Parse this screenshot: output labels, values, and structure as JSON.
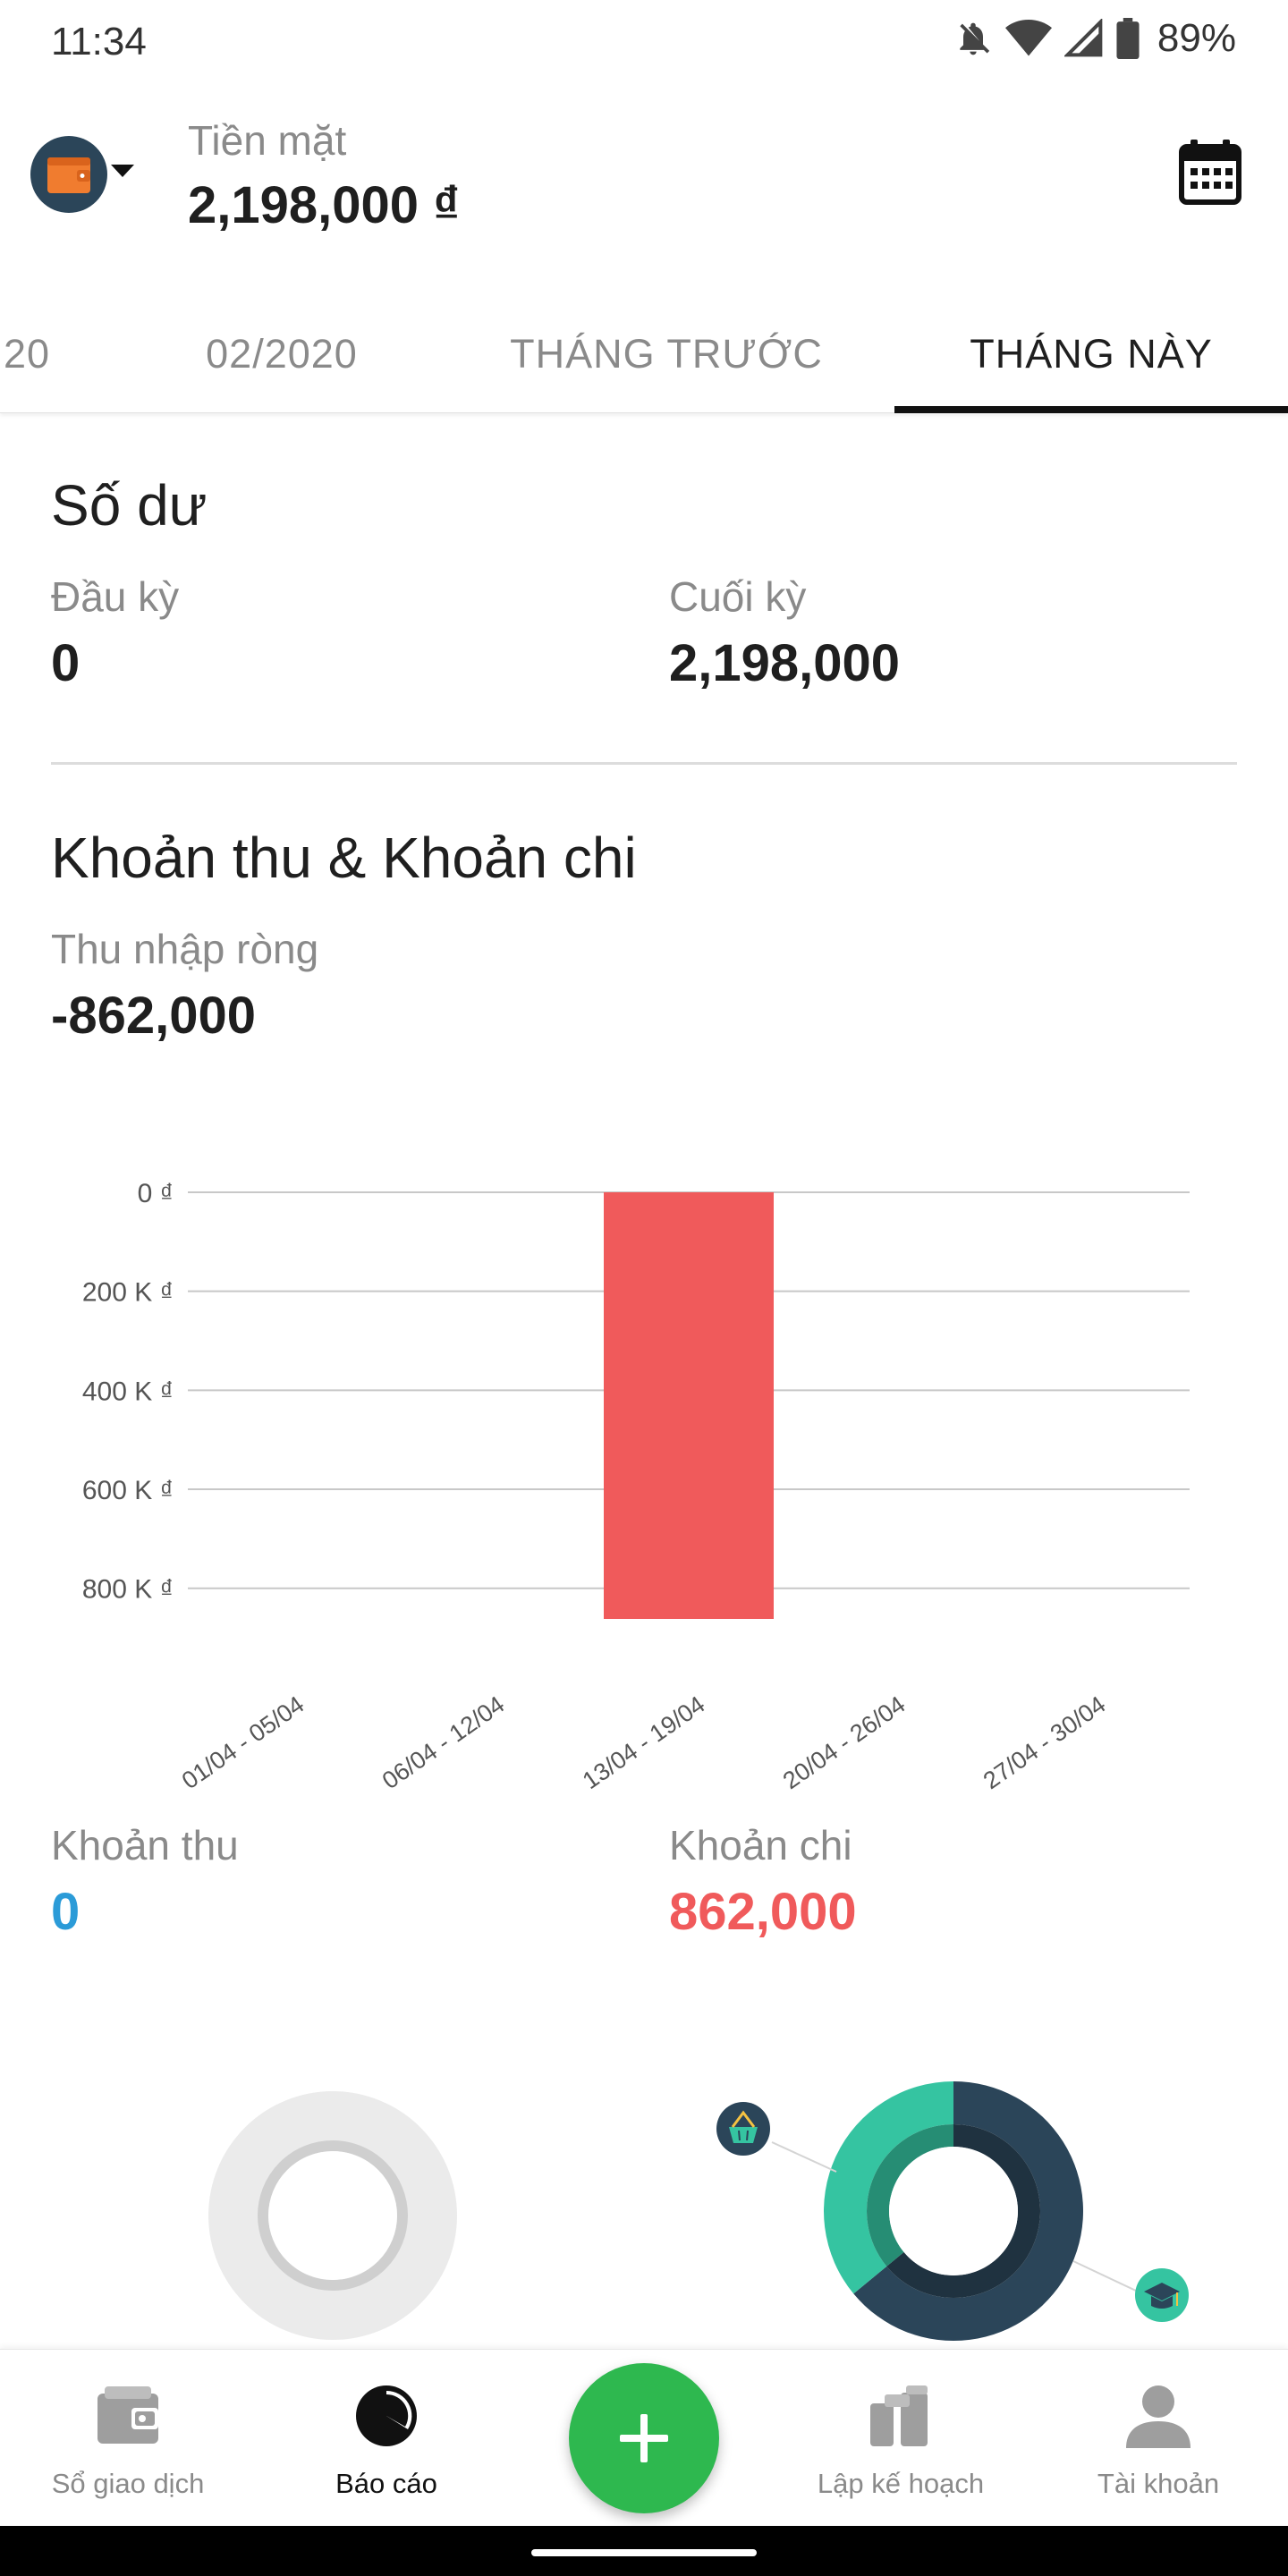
{
  "status_bar": {
    "time": "11:34",
    "battery": "89%"
  },
  "header": {
    "wallet_name": "Tiền mặt",
    "wallet_balance": "2,198,000 ₫",
    "wallet_icon": "wallet-icon",
    "calendar_icon": "calendar-icon"
  },
  "tabs": [
    {
      "label": "20"
    },
    {
      "label": "02/2020"
    },
    {
      "label": "THÁNG TRƯỚC"
    },
    {
      "label": "THÁNG NÀY",
      "active": true
    }
  ],
  "balance": {
    "title": "Số dư",
    "opening_label": "Đầu kỳ",
    "opening_value": "0",
    "closing_label": "Cuối kỳ",
    "closing_value": "2,198,000"
  },
  "income_expense": {
    "title": "Khoản thu & Khoản chi",
    "net_label": "Thu nhập ròng",
    "net_value": "-862,000",
    "income_label": "Khoản thu",
    "income_value": "0",
    "expense_label": "Khoản chi",
    "expense_value": "862,000"
  },
  "colors": {
    "income": "#2b9bd8",
    "expense": "#f05a5b",
    "donut_teal": "#35c4a1",
    "donut_navy": "#2b4559",
    "fab": "#2eb84f"
  },
  "chart_data": {
    "type": "bar",
    "categories": [
      "01/04 - 05/04",
      "06/04 - 12/04",
      "13/04 - 19/04",
      "20/04 - 26/04",
      "27/04 - 30/04"
    ],
    "values": [
      0,
      0,
      -862000,
      0,
      0
    ],
    "y_ticks": [
      "0 ₫",
      "200 K ₫",
      "400 K ₫",
      "600 K ₫",
      "800 K ₫"
    ],
    "y_tick_values": [
      0,
      -200000,
      -400000,
      -600000,
      -800000
    ],
    "ylim": [
      -862000,
      0
    ],
    "grid": true,
    "bar_color": "#f05a5b"
  },
  "expense_breakdown": {
    "type": "pie",
    "slices": [
      {
        "category_icon": "basket-icon",
        "color": "#35c4a1",
        "fraction": 0.36
      },
      {
        "category_icon": "graduation-cap-icon",
        "color": "#2b4559",
        "fraction": 0.64
      }
    ]
  },
  "bottom_nav": {
    "items": [
      {
        "label": "Sổ giao dịch",
        "icon": "wallet-icon"
      },
      {
        "label": "Báo cáo",
        "icon": "pie-chart-icon",
        "active": true
      },
      {
        "label": "Lập kế hoạch",
        "icon": "planning-icon"
      },
      {
        "label": "Tài khoản",
        "icon": "person-icon"
      }
    ],
    "fab_icon": "plus-icon"
  }
}
